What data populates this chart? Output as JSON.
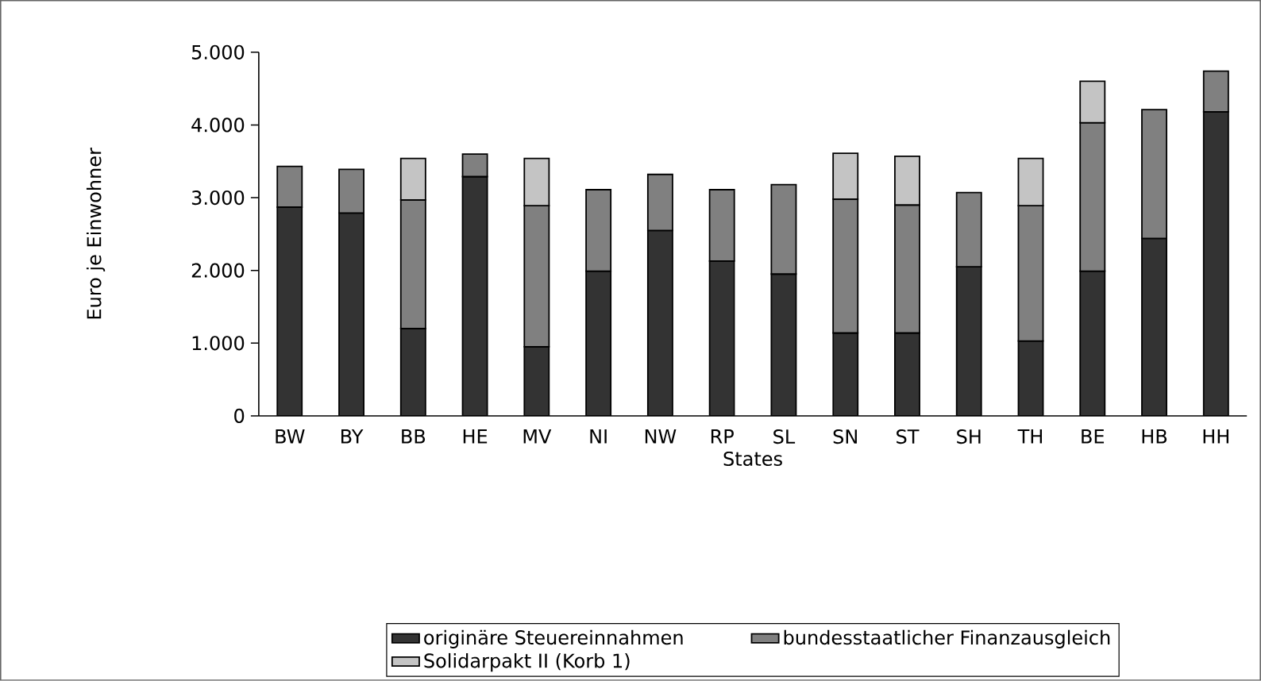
{
  "chart_data": {
    "type": "bar",
    "stacked": true,
    "xlabel": "States",
    "ylabel": "Euro je Einwohner",
    "categories": [
      "BW",
      "BY",
      "BB",
      "HE",
      "MV",
      "NI",
      "NW",
      "RP",
      "SL",
      "SN",
      "ST",
      "SH",
      "TH",
      "BE",
      "HB",
      "HH"
    ],
    "series": [
      {
        "name": "originäre Steuereinnahmen",
        "color": "#333333",
        "values": [
          2870,
          2790,
          1200,
          3290,
          950,
          1990,
          2550,
          2130,
          1950,
          1140,
          1140,
          2050,
          1030,
          1990,
          2440,
          4180
        ]
      },
      {
        "name": "bundesstaatlicher Finanzausgleich",
        "color": "#808080",
        "values": [
          560,
          600,
          1770,
          310,
          1940,
          1120,
          770,
          980,
          1230,
          1840,
          1760,
          1020,
          1860,
          2040,
          1770,
          560
        ]
      },
      {
        "name": "Solidarpakt II (Korb 1)",
        "color": "#c4c4c4",
        "values": [
          null,
          null,
          570,
          null,
          650,
          null,
          null,
          null,
          null,
          630,
          670,
          null,
          650,
          570,
          null,
          null
        ]
      }
    ],
    "ylim": [
      0,
      5000
    ],
    "yticks": [
      0,
      {
        "value": 1000,
        "label": "1.000"
      },
      {
        "value": 2000,
        "label": "2.000"
      },
      {
        "value": 3000,
        "label": "3.000"
      },
      {
        "value": 4000,
        "label": "4.000"
      },
      {
        "value": 5000,
        "label": "5.000"
      }
    ],
    "grid": false,
    "legend": "bottom"
  }
}
